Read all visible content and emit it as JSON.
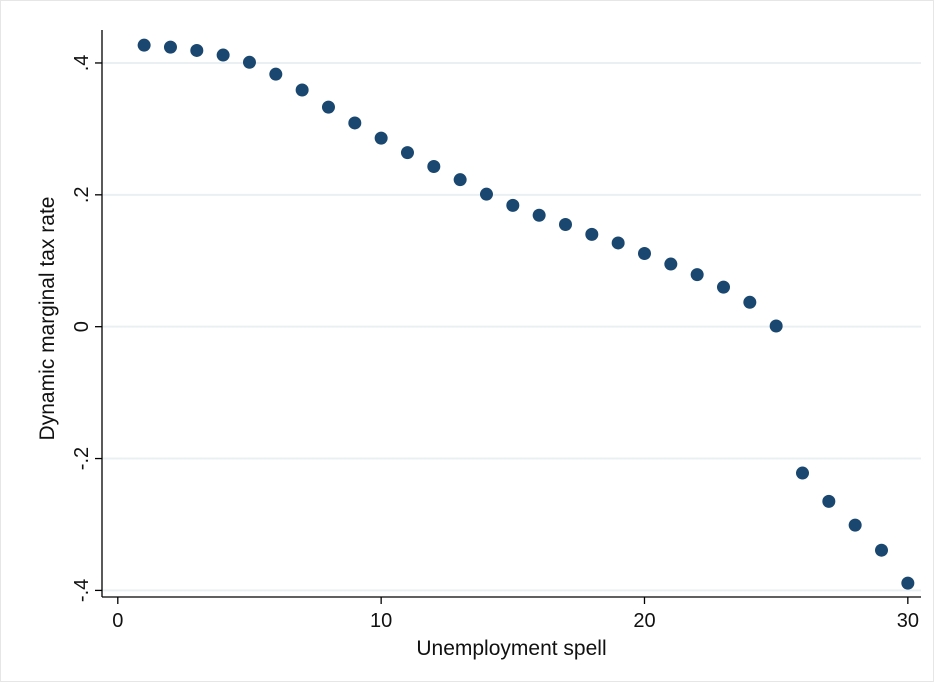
{
  "chart_data": {
    "type": "scatter",
    "xlabel": "Unemployment spell",
    "ylabel": "Dynamic marginal tax rate",
    "xlim": [
      -0.6,
      30.5
    ],
    "ylim": [
      -0.41,
      0.45
    ],
    "x_ticks": [
      0,
      10,
      20,
      30
    ],
    "x_tick_labels": [
      "0",
      "10",
      "20",
      "30"
    ],
    "y_ticks": [
      -0.4,
      -0.2,
      0,
      0.2,
      0.4
    ],
    "y_tick_labels": [
      "-.4",
      "-.2",
      "0",
      ".2",
      ".4"
    ],
    "grid": "horizontal",
    "marker_color": "#1a476f",
    "grid_color": "#eaf0f2",
    "points": {
      "x": [
        1,
        2,
        3,
        4,
        5,
        6,
        7,
        8,
        9,
        10,
        11,
        12,
        13,
        14,
        15,
        16,
        17,
        18,
        19,
        20,
        21,
        22,
        23,
        24,
        25,
        26,
        27,
        28,
        29,
        30
      ],
      "y": [
        0.427,
        0.424,
        0.419,
        0.412,
        0.401,
        0.383,
        0.359,
        0.333,
        0.309,
        0.286,
        0.264,
        0.243,
        0.223,
        0.201,
        0.184,
        0.169,
        0.155,
        0.14,
        0.127,
        0.111,
        0.095,
        0.079,
        0.06,
        0.037,
        0.001,
        -0.222,
        -0.265,
        -0.301,
        -0.339,
        -0.389
      ]
    }
  }
}
